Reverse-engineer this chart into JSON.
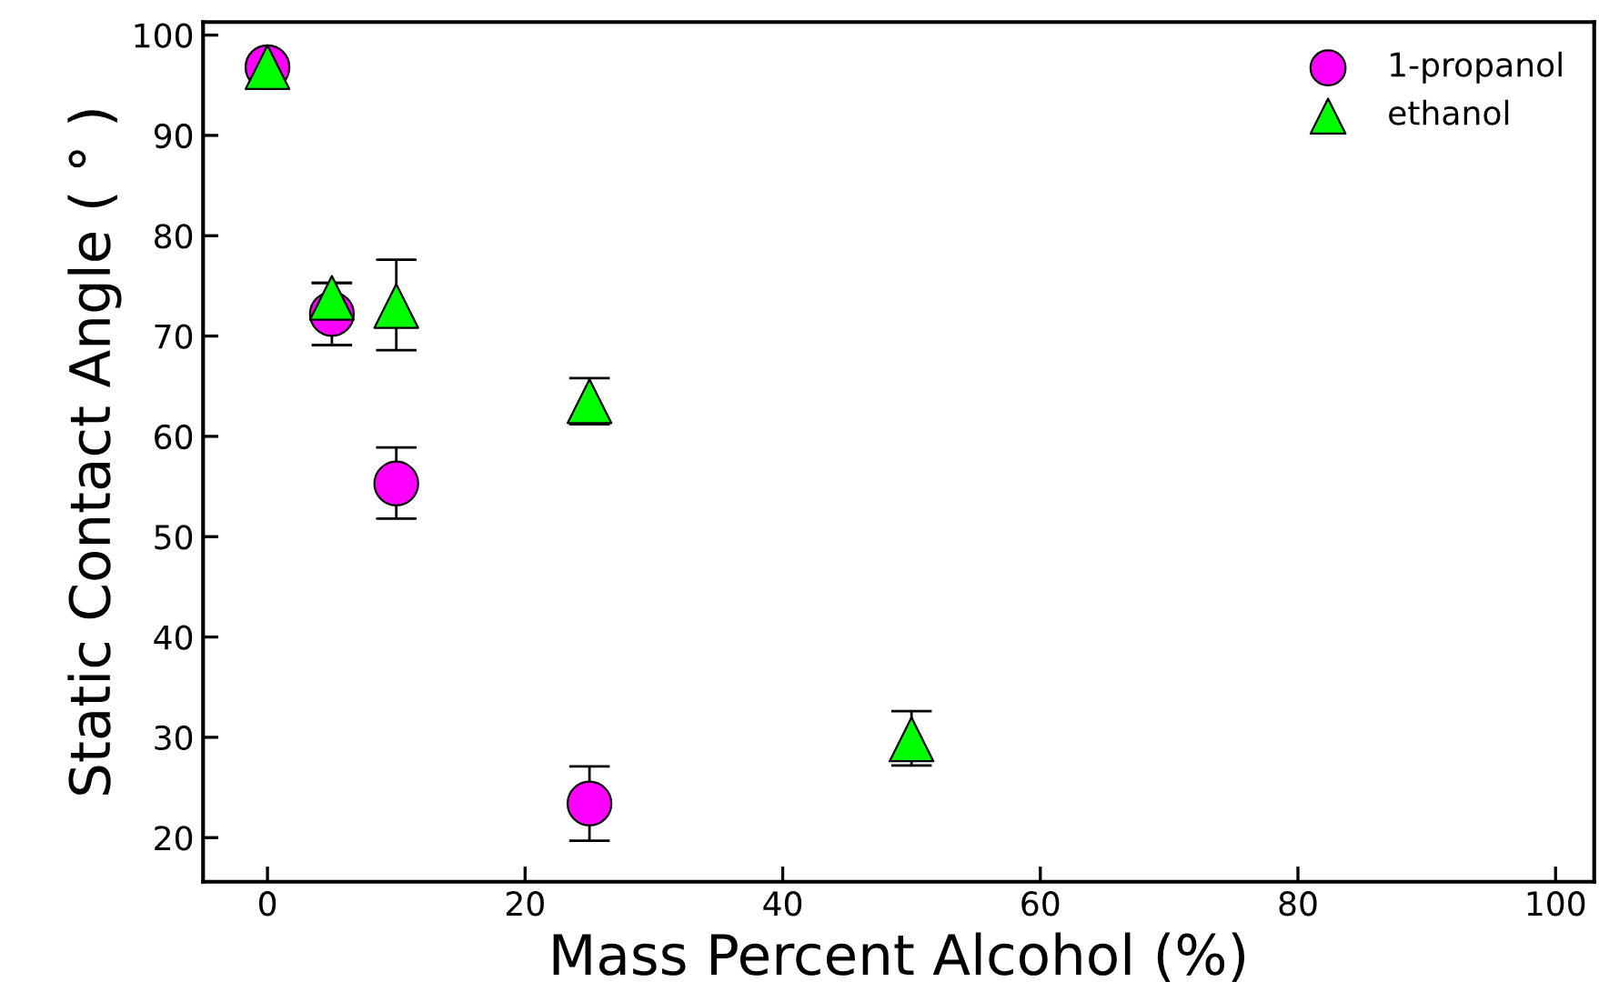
{
  "chart_data": {
    "type": "scatter",
    "xlabel": "Mass Percent Alcohol (%)",
    "ylabel": "Static Contact Angle ( ° )",
    "xlim": [
      -5,
      103
    ],
    "ylim": [
      15.6,
      101.3
    ],
    "xticks": [
      0,
      20,
      40,
      60,
      80,
      100
    ],
    "yticks": [
      20,
      30,
      40,
      50,
      60,
      70,
      80,
      90,
      100
    ],
    "grid": false,
    "legend": "top right",
    "series": [
      {
        "name": "1-propanol",
        "color": "#ff00ff",
        "marker": "circle",
        "x": [
          0,
          5,
          10,
          25
        ],
        "values": [
          96.8,
          72.2,
          55.3,
          23.4
        ],
        "errors": [
          null,
          [
            69.1,
            75.3
          ],
          [
            51.8,
            58.9
          ],
          [
            19.7,
            27.1
          ]
        ]
      },
      {
        "name": "ethanol",
        "color": "#00ff00",
        "marker": "triangle",
        "x": [
          0,
          5,
          10,
          25,
          50
        ],
        "values": [
          96.8,
          73.8,
          73.0,
          63.5,
          29.8
        ],
        "errors": [
          null,
          [
            72.3,
            75.3
          ],
          [
            68.6,
            77.6
          ],
          [
            61.2,
            65.8
          ],
          [
            27.2,
            32.6
          ]
        ]
      }
    ]
  }
}
